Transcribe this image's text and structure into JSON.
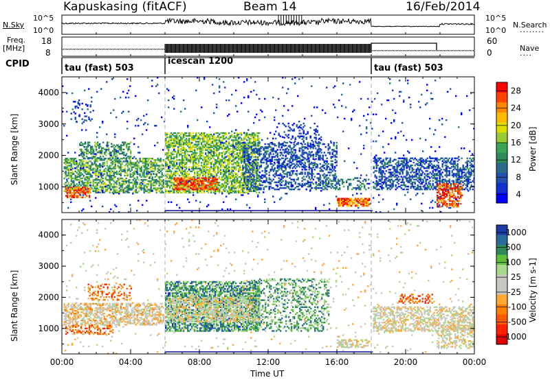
{
  "header": {
    "station": "Kapuskasing (fitACF)",
    "beam": "Beam 14",
    "date": "16/Feb/2014"
  },
  "panels": {
    "nsky": {
      "left_label": "N.Sky",
      "right_label": "N.Search",
      "left_ticks": [
        "10^5",
        "10^0"
      ],
      "right_ticks": [
        "10^5",
        "10^0"
      ]
    },
    "freq": {
      "left_label": "Freq.",
      "left_unit": "[MHz]",
      "right_label": "Nave",
      "left_ticks": [
        "18",
        "8"
      ],
      "right_ticks": [
        "60",
        "0"
      ]
    },
    "cpid": {
      "label": "CPID",
      "segments": [
        {
          "start_hour": 0,
          "end_hour": 6,
          "label": "tau (fast) 503"
        },
        {
          "start_hour": 6,
          "end_hour": 18,
          "label": "icescan 1200"
        },
        {
          "start_hour": 18,
          "end_hour": 24,
          "label": "tau (fast) 503"
        }
      ]
    }
  },
  "chart_data": [
    {
      "type": "heatmap",
      "title": "",
      "xlabel": "Time UT",
      "ylabel": "Slant Range [km]",
      "x_ticks": [
        "00:00",
        "04:00",
        "08:00",
        "12:00",
        "16:00",
        "20:00",
        "00:00"
      ],
      "x_hours": [
        0,
        4,
        8,
        12,
        16,
        20,
        24
      ],
      "xlim": [
        0,
        24
      ],
      "y_ticks": [
        "1000",
        "2000",
        "3000",
        "4000"
      ],
      "y_values": [
        1000,
        2000,
        3000,
        4000
      ],
      "ylim": [
        180,
        4500
      ],
      "colorbar": {
        "label": "Power [dB]",
        "ticks": [
          "28",
          "24",
          "20",
          "16",
          "12",
          "8",
          "4"
        ],
        "colors": [
          "#ff0000",
          "#ff4400",
          "#ff8800",
          "#ffbb00",
          "#dddd00",
          "#99cc33",
          "#3aa655",
          "#2f8a5a",
          "#2a6a8a",
          "#2050b0",
          "#1030d0",
          "#0000ff"
        ]
      },
      "regions": [
        {
          "t0": 0.1,
          "t1": 5.9,
          "r0": 800,
          "r1": 1900,
          "density": 0.55,
          "bias": 0.45
        },
        {
          "t0": 0.2,
          "t1": 1.6,
          "r0": 650,
          "r1": 1000,
          "density": 0.6,
          "bias": 0.9
        },
        {
          "t0": 1.0,
          "t1": 4.0,
          "r0": 1900,
          "r1": 2400,
          "density": 0.4,
          "bias": 0.4
        },
        {
          "t0": 0.5,
          "t1": 1.8,
          "r0": 3000,
          "r1": 3700,
          "density": 0.12,
          "bias": 0.15
        },
        {
          "t0": 6.0,
          "t1": 11.5,
          "r0": 800,
          "r1": 2700,
          "density": 0.6,
          "bias": 0.5
        },
        {
          "t0": 6.5,
          "t1": 9.0,
          "r0": 900,
          "r1": 1300,
          "density": 0.65,
          "bias": 0.9
        },
        {
          "t0": 10.5,
          "t1": 16.0,
          "r0": 900,
          "r1": 2400,
          "density": 0.35,
          "bias": 0.2
        },
        {
          "t0": 12.5,
          "t1": 15.0,
          "r0": 1600,
          "r1": 3000,
          "density": 0.15,
          "bias": 0.15
        },
        {
          "t0": 16.0,
          "t1": 17.9,
          "r0": 380,
          "r1": 640,
          "density": 0.75,
          "bias": 0.85
        },
        {
          "t0": 15.0,
          "t1": 17.9,
          "r0": 900,
          "r1": 1300,
          "density": 0.3,
          "bias": 0.3
        },
        {
          "t0": 18.1,
          "t1": 24.0,
          "r0": 900,
          "r1": 1900,
          "density": 0.45,
          "bias": 0.2
        },
        {
          "t0": 21.8,
          "t1": 23.3,
          "r0": 350,
          "r1": 1100,
          "density": 0.55,
          "bias": 0.9
        },
        {
          "t0": 0.0,
          "t1": 24.0,
          "r0": 180,
          "r1": 4500,
          "density": 0.02,
          "bias": 0.1
        }
      ]
    },
    {
      "type": "heatmap",
      "title": "",
      "xlabel": "Time UT",
      "ylabel": "Slant Range [km]",
      "x_ticks": [
        "00:00",
        "04:00",
        "08:00",
        "12:00",
        "16:00",
        "20:00",
        "00:00"
      ],
      "x_hours": [
        0,
        4,
        8,
        12,
        16,
        20,
        24
      ],
      "xlim": [
        0,
        24
      ],
      "y_ticks": [
        "1000",
        "2000",
        "3000",
        "4000"
      ],
      "y_values": [
        1000,
        2000,
        3000,
        4000
      ],
      "ylim": [
        180,
        4500
      ],
      "colorbar": {
        "label": "Velocity [m s-1]",
        "ticks": [
          "1000",
          "500",
          "100",
          "25",
          "-25",
          "-100",
          "-500",
          "-1000"
        ],
        "colors": [
          "#1a3aa8",
          "#2a6a9a",
          "#2f8a5a",
          "#5fbf3a",
          "#a9d98a",
          "#c8c8c0",
          "#c8c8c0",
          "#ffaa33",
          "#ff7f00",
          "#ff5a00",
          "#ff2200",
          "#e00000"
        ]
      },
      "regions": [
        {
          "t0": 0.1,
          "t1": 5.9,
          "r0": 1100,
          "r1": 1800,
          "density": 0.55,
          "bias": 0.45
        },
        {
          "t0": 0.2,
          "t1": 3.0,
          "r0": 800,
          "r1": 1100,
          "density": 0.45,
          "bias": 0.25
        },
        {
          "t0": 1.5,
          "t1": 4.0,
          "r0": 1900,
          "r1": 2400,
          "density": 0.3,
          "bias": 0.25
        },
        {
          "t0": 6.0,
          "t1": 11.5,
          "r0": 900,
          "r1": 2500,
          "density": 0.6,
          "bias": 0.8
        },
        {
          "t0": 6.0,
          "t1": 11.5,
          "r0": 1200,
          "r1": 2000,
          "density": 0.5,
          "bias": 0.5
        },
        {
          "t0": 11.0,
          "t1": 15.5,
          "r0": 900,
          "r1": 2600,
          "density": 0.3,
          "bias": 0.75
        },
        {
          "t0": 16.0,
          "t1": 17.9,
          "r0": 380,
          "r1": 640,
          "density": 0.5,
          "bias": 0.5
        },
        {
          "t0": 18.1,
          "t1": 24.0,
          "r0": 900,
          "r1": 1700,
          "density": 0.5,
          "bias": 0.5
        },
        {
          "t0": 19.5,
          "t1": 21.5,
          "r0": 1800,
          "r1": 2100,
          "density": 0.3,
          "bias": 0.2
        },
        {
          "t0": 21.8,
          "t1": 24.0,
          "r0": 350,
          "r1": 1100,
          "density": 0.4,
          "bias": 0.5
        },
        {
          "t0": 0.0,
          "t1": 24.0,
          "r0": 180,
          "r1": 4500,
          "density": 0.02,
          "bias": 0.5
        }
      ]
    }
  ]
}
